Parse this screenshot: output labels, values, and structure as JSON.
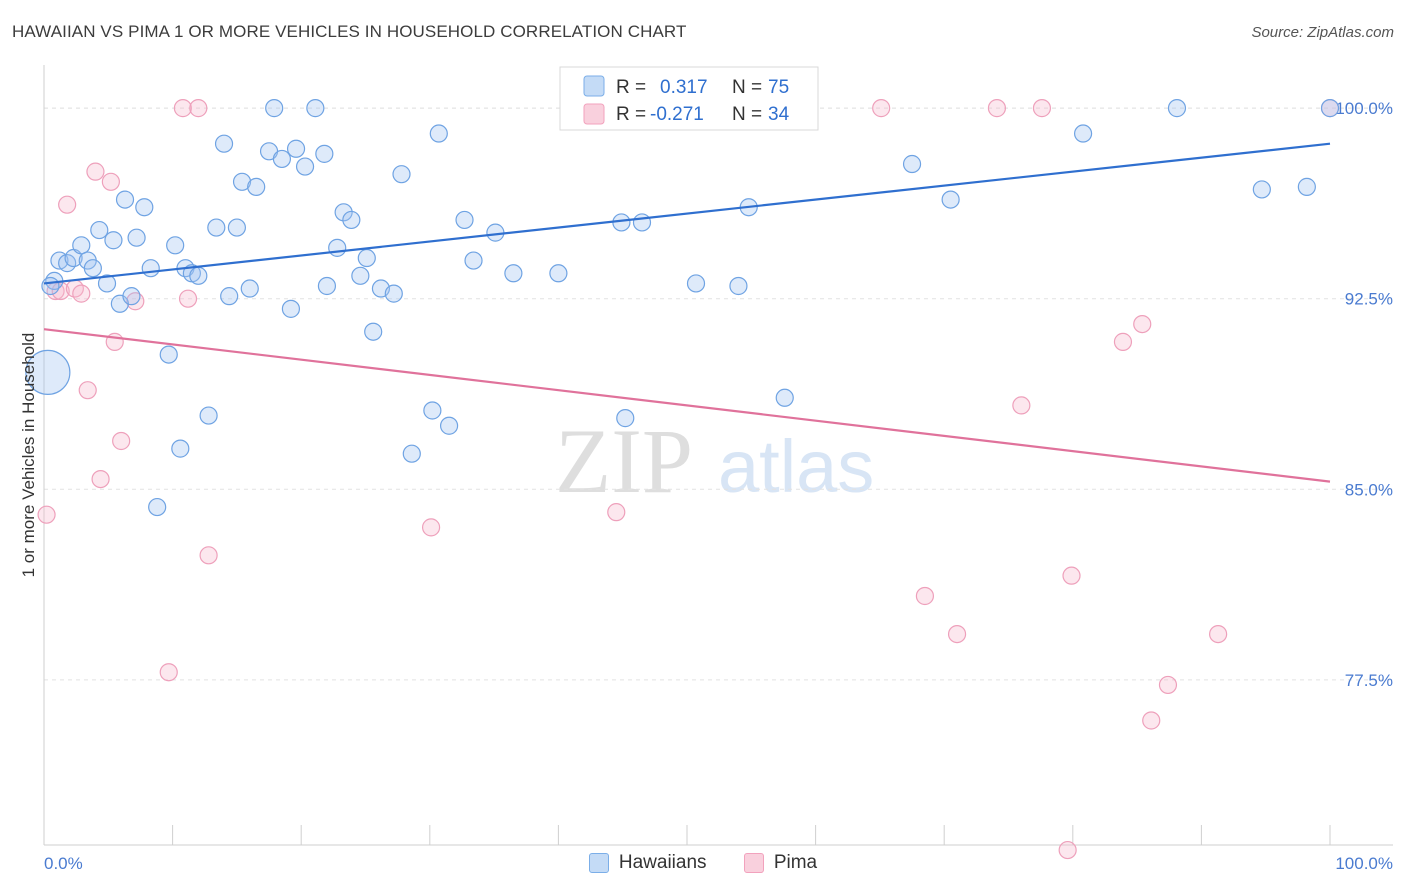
{
  "header": {
    "title": "HAWAIIAN VS PIMA 1 OR MORE VEHICLES IN HOUSEHOLD CORRELATION CHART",
    "source": "Source: ZipAtlas.com"
  },
  "watermark": {
    "zip": "ZIP",
    "atlas": "atlas"
  },
  "stats_legend": {
    "rows": [
      {
        "r_label": "R =",
        "r_value": "0.317",
        "n_label": "N =",
        "n_value": "75"
      },
      {
        "r_label": "R =",
        "r_value": "-0.271",
        "n_label": "N =",
        "n_value": "34"
      }
    ]
  },
  "chart_data": {
    "type": "scatter",
    "title": "HAWAIIAN VS PIMA 1 OR MORE VEHICLES IN HOUSEHOLD CORRELATION CHART",
    "xlabel": "",
    "ylabel": "1 or more Vehicles in Household",
    "xlim": [
      0,
      100
    ],
    "ylim": [
      71.0,
      101.5
    ],
    "x_tick_labels": [
      "0.0%",
      "100.0%"
    ],
    "y_ticks": [
      77.5,
      85.0,
      92.5,
      100.0
    ],
    "y_tick_labels": [
      "77.5%",
      "85.0%",
      "92.5%",
      "100.0%"
    ],
    "grid": true,
    "legend_position": "bottom-center",
    "colors": {
      "Hawaiians": "#7baee8",
      "Pima": "#f2a2bd",
      "Hawaiians_line": "#2f6fcf",
      "Pima_line": "#e0729b"
    },
    "series": [
      {
        "name": "Hawaiians",
        "trend": {
          "x": [
            0,
            100
          ],
          "y": [
            93.1,
            98.6
          ]
        },
        "points": [
          [
            0.3,
            89.6
          ],
          [
            0.8,
            93.2
          ],
          [
            1.2,
            94.0
          ],
          [
            1.8,
            93.9
          ],
          [
            2.3,
            94.1
          ],
          [
            2.9,
            94.6
          ],
          [
            3.4,
            94.0
          ],
          [
            3.8,
            93.7
          ],
          [
            4.3,
            95.2
          ],
          [
            4.9,
            93.1
          ],
          [
            5.4,
            94.8
          ],
          [
            5.9,
            92.3
          ],
          [
            6.3,
            96.4
          ],
          [
            6.8,
            92.6
          ],
          [
            7.2,
            94.9
          ],
          [
            7.8,
            96.1
          ],
          [
            8.3,
            93.7
          ],
          [
            8.8,
            84.3
          ],
          [
            9.7,
            90.3
          ],
          [
            10.2,
            94.6
          ],
          [
            10.6,
            86.6
          ],
          [
            11.0,
            93.7
          ],
          [
            11.5,
            93.5
          ],
          [
            12.0,
            93.4
          ],
          [
            12.8,
            87.9
          ],
          [
            13.4,
            95.3
          ],
          [
            14.0,
            98.6
          ],
          [
            14.4,
            92.6
          ],
          [
            15.0,
            95.3
          ],
          [
            15.4,
            97.1
          ],
          [
            16.0,
            92.9
          ],
          [
            16.5,
            96.9
          ],
          [
            17.5,
            98.3
          ],
          [
            17.9,
            100.0
          ],
          [
            18.5,
            98.0
          ],
          [
            19.2,
            92.1
          ],
          [
            19.6,
            98.4
          ],
          [
            20.3,
            97.7
          ],
          [
            21.1,
            100.0
          ],
          [
            21.8,
            98.2
          ],
          [
            22.0,
            93.0
          ],
          [
            22.8,
            94.5
          ],
          [
            23.3,
            95.9
          ],
          [
            23.9,
            95.6
          ],
          [
            24.6,
            93.4
          ],
          [
            25.1,
            94.1
          ],
          [
            25.6,
            91.2
          ],
          [
            26.2,
            92.9
          ],
          [
            27.2,
            92.7
          ],
          [
            27.8,
            97.4
          ],
          [
            28.6,
            86.4
          ],
          [
            30.2,
            88.1
          ],
          [
            30.7,
            99.0
          ],
          [
            31.5,
            87.5
          ],
          [
            32.7,
            95.6
          ],
          [
            33.4,
            94.0
          ],
          [
            35.1,
            95.1
          ],
          [
            36.5,
            93.5
          ],
          [
            40.0,
            93.5
          ],
          [
            44.9,
            95.5
          ],
          [
            45.2,
            87.8
          ],
          [
            46.5,
            95.5
          ],
          [
            50.0,
            100.0
          ],
          [
            50.7,
            93.1
          ],
          [
            54.8,
            96.1
          ],
          [
            54.0,
            93.0
          ],
          [
            57.6,
            88.6
          ],
          [
            67.5,
            97.8
          ],
          [
            70.5,
            96.4
          ],
          [
            80.8,
            99.0
          ],
          [
            88.1,
            100.0
          ],
          [
            94.7,
            96.8
          ],
          [
            98.2,
            96.9
          ],
          [
            100.0,
            100.0
          ],
          [
            0.5,
            93.0
          ]
        ]
      },
      {
        "name": "Pima",
        "trend": {
          "x": [
            0,
            100
          ],
          "y": [
            91.3,
            85.3
          ]
        },
        "points": [
          [
            0.2,
            84.0
          ],
          [
            0.9,
            92.8
          ],
          [
            1.3,
            92.8
          ],
          [
            1.8,
            96.2
          ],
          [
            2.4,
            92.9
          ],
          [
            2.9,
            92.7
          ],
          [
            3.4,
            88.9
          ],
          [
            4.0,
            97.5
          ],
          [
            4.4,
            85.4
          ],
          [
            5.2,
            97.1
          ],
          [
            5.5,
            90.8
          ],
          [
            6.0,
            86.9
          ],
          [
            7.1,
            92.4
          ],
          [
            9.7,
            77.8
          ],
          [
            10.8,
            100.0
          ],
          [
            11.2,
            92.5
          ],
          [
            12.0,
            100.0
          ],
          [
            12.8,
            82.4
          ],
          [
            30.1,
            83.5
          ],
          [
            44.5,
            84.1
          ],
          [
            65.1,
            100.0
          ],
          [
            68.5,
            80.8
          ],
          [
            71.0,
            79.3
          ],
          [
            74.1,
            100.0
          ],
          [
            76.0,
            88.3
          ],
          [
            77.6,
            100.0
          ],
          [
            79.6,
            70.8
          ],
          [
            79.9,
            81.6
          ],
          [
            83.9,
            90.8
          ],
          [
            85.4,
            91.5
          ],
          [
            86.1,
            75.9
          ],
          [
            87.4,
            77.3
          ],
          [
            91.3,
            79.3
          ],
          [
            100.0,
            100.0
          ]
        ]
      }
    ]
  },
  "bottom_legend": {
    "hawaiians": "Hawaiians",
    "pima": "Pima"
  }
}
